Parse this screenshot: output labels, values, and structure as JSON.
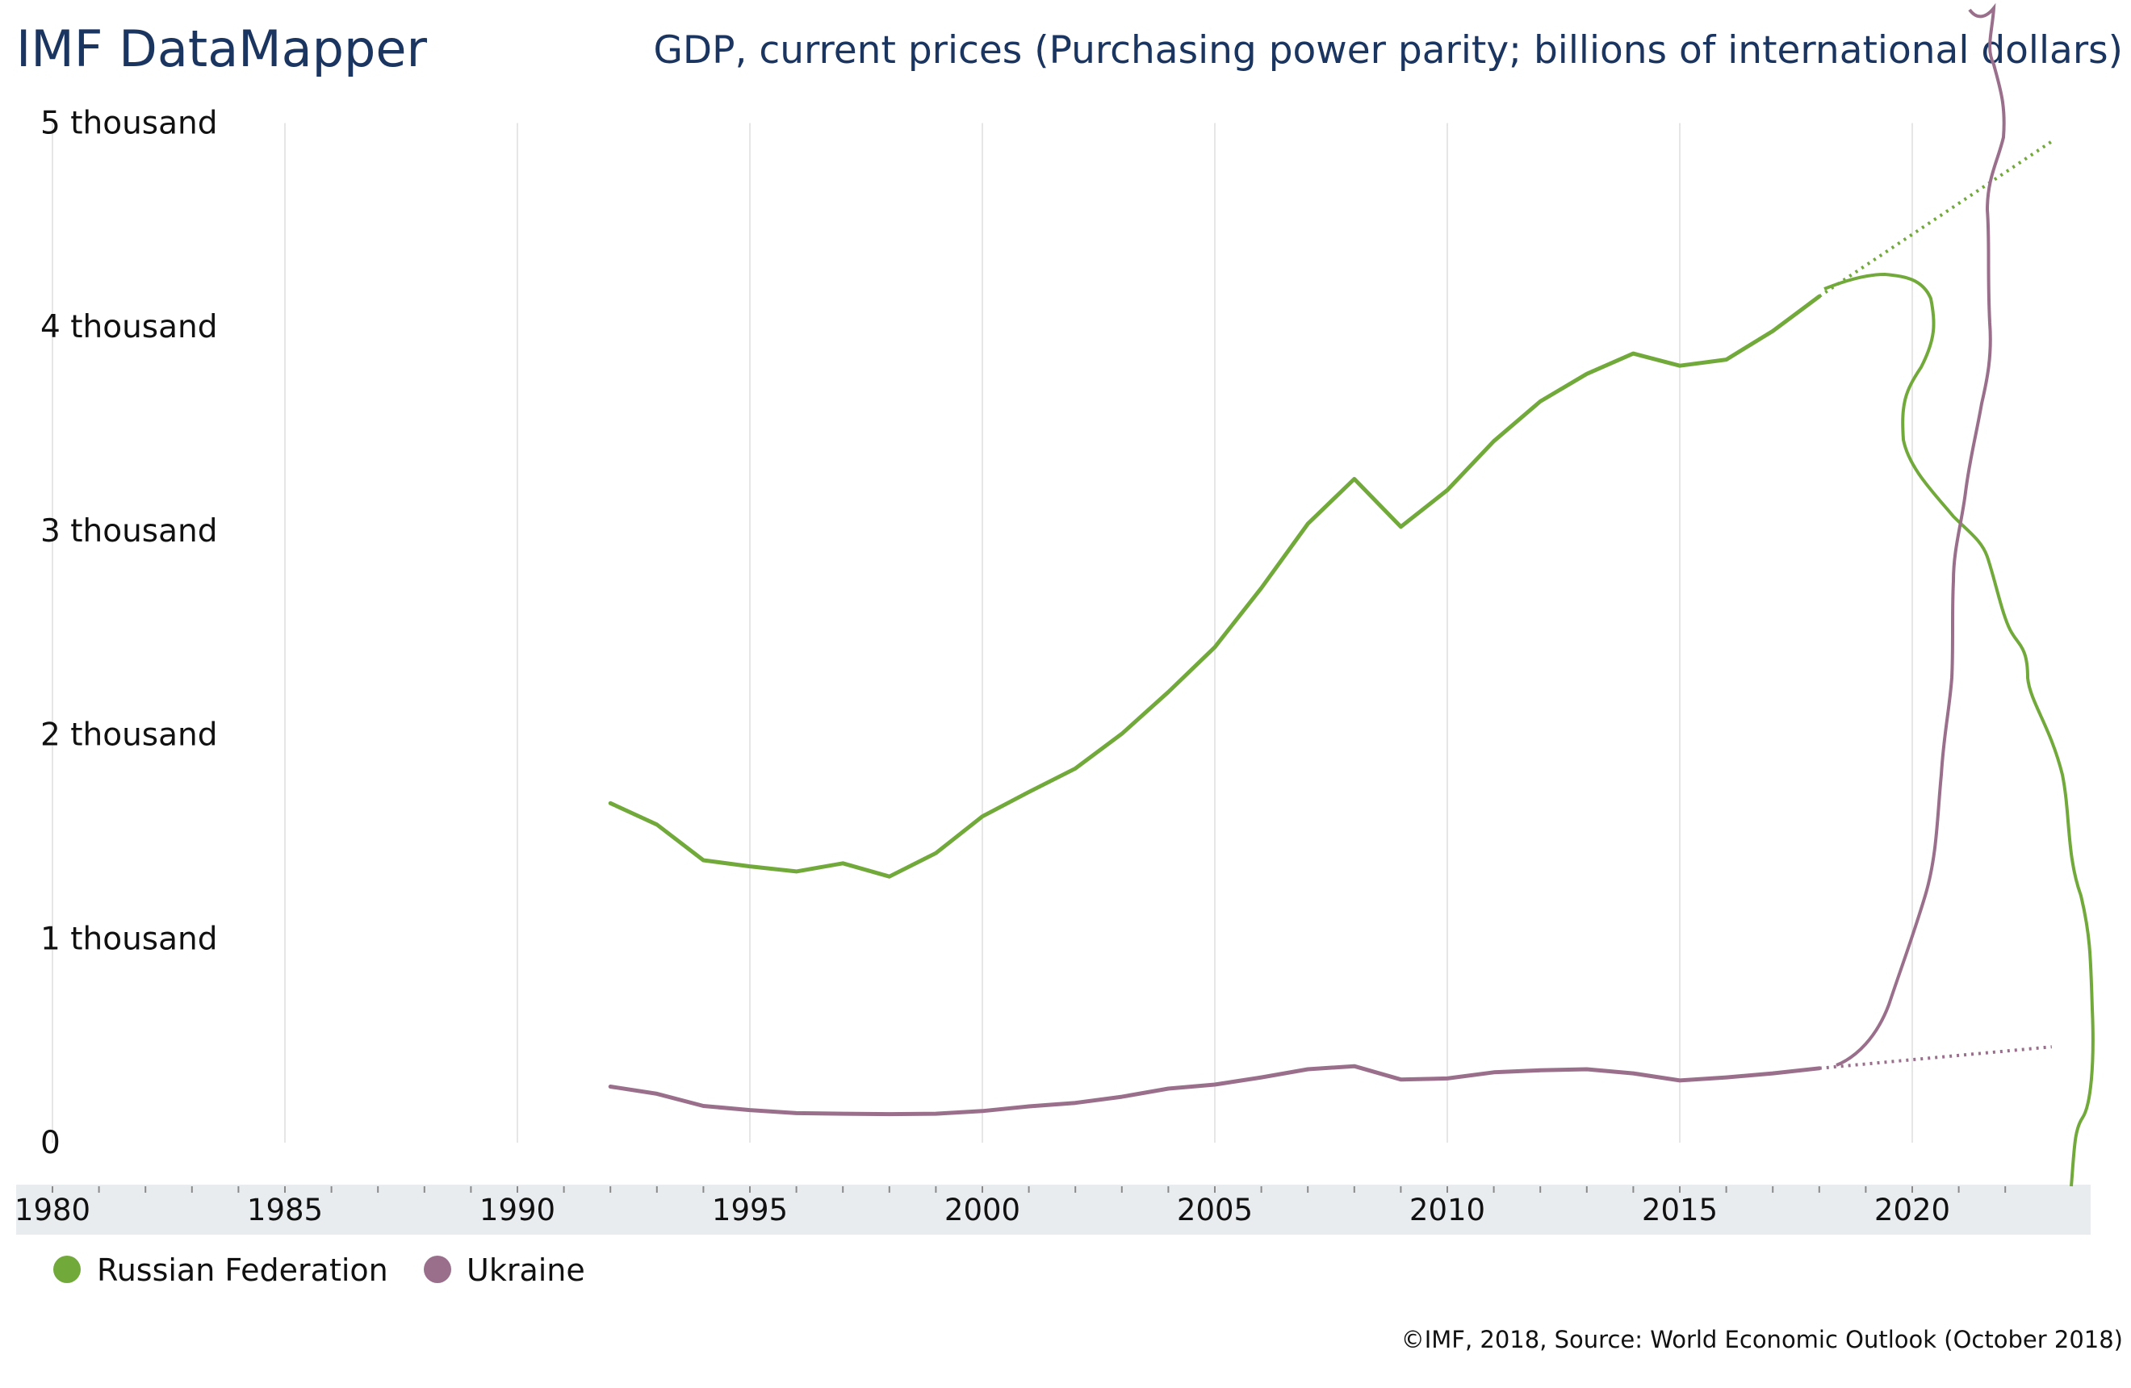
{
  "header": {
    "brand": "IMF DataMapper",
    "title": "GDP, current prices (Purchasing power parity; billions of international dollars)"
  },
  "footer": {
    "credit": "©IMF, 2018, Source: World Economic Outlook (October 2018)"
  },
  "chart_data": {
    "type": "line",
    "title": "GDP, current prices (Purchasing power parity; billions of international dollars)",
    "xlim": [
      1980,
      2023
    ],
    "ylim": [
      0,
      5000
    ],
    "y_ticks": [
      {
        "value": 0,
        "label": "0"
      },
      {
        "value": 1000,
        "label": "1 thousand"
      },
      {
        "value": 2000,
        "label": "2 thousand"
      },
      {
        "value": 3000,
        "label": "3 thousand"
      },
      {
        "value": 4000,
        "label": "4 thousand"
      },
      {
        "value": 5000,
        "label": "5 thousand"
      }
    ],
    "x_ticks": [
      "1980",
      "1985",
      "1990",
      "1995",
      "2000",
      "2005",
      "2010",
      "2015",
      "2020"
    ],
    "grid": true,
    "legend_position": "bottom-left",
    "series": [
      {
        "name": "Russian Federation",
        "color": "#72a93b",
        "x": [
          1992,
          1993,
          1994,
          1995,
          1996,
          1997,
          1998,
          1999,
          2000,
          2001,
          2002,
          2003,
          2004,
          2005,
          2006,
          2007,
          2008,
          2009,
          2010,
          2011,
          2012,
          2013,
          2014,
          2015,
          2016,
          2017,
          2018
        ],
        "values": [
          1665,
          1560,
          1385,
          1355,
          1330,
          1370,
          1305,
          1420,
          1600,
          1720,
          1835,
          2005,
          2210,
          2430,
          2720,
          3035,
          3255,
          3020,
          3200,
          3440,
          3635,
          3770,
          3870,
          3810,
          3840,
          3980,
          4150
        ],
        "projection": {
          "x": [
            2018,
            2023
          ],
          "values": [
            4150,
            4910
          ]
        }
      },
      {
        "name": "Ukraine",
        "color": "#9a6f8c",
        "x": [
          1992,
          1993,
          1994,
          1995,
          1996,
          1997,
          1998,
          1999,
          2000,
          2001,
          2002,
          2003,
          2004,
          2005,
          2006,
          2007,
          2008,
          2009,
          2010,
          2011,
          2012,
          2013,
          2014,
          2015,
          2016,
          2017,
          2018
        ],
        "values": [
          275,
          240,
          180,
          160,
          145,
          142,
          140,
          142,
          155,
          178,
          195,
          225,
          265,
          285,
          320,
          360,
          375,
          310,
          315,
          345,
          355,
          360,
          340,
          305,
          320,
          340,
          365
        ],
        "projection": {
          "x": [
            2018,
            2023
          ],
          "values": [
            365,
            470
          ]
        }
      }
    ]
  }
}
